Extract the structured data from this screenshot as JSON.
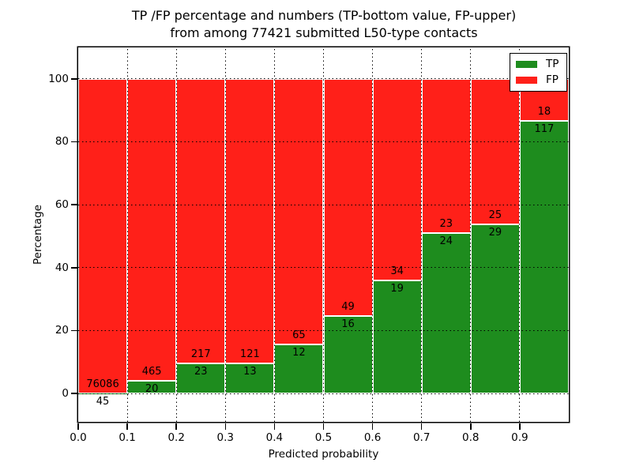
{
  "chart_data": {
    "type": "bar",
    "stacked": true,
    "normalized_to": 100,
    "title_line1": "TP /FP percentage and numbers (TP-bottom value, FP-upper)",
    "title_line2": "from among 77421 submitted L50-type contacts",
    "xlabel": "Predicted probability",
    "ylabel": "Percentage",
    "bin_starts": [
      0.0,
      0.1,
      0.2,
      0.3,
      0.4,
      0.5,
      0.6,
      0.7,
      0.8,
      0.9
    ],
    "bin_width": 0.1,
    "series": [
      {
        "name": "TP",
        "color": "#1e8c1e",
        "counts": [
          45,
          20,
          23,
          13,
          12,
          16,
          19,
          24,
          29,
          117
        ]
      },
      {
        "name": "FP",
        "color": "#ff2019",
        "counts": [
          76086,
          465,
          217,
          121,
          65,
          49,
          34,
          23,
          25,
          18
        ]
      }
    ],
    "tp_percent": [
      0.06,
      4.12,
      9.58,
      9.7,
      15.58,
      24.62,
      35.85,
      51.06,
      53.7,
      86.67
    ],
    "total_contacts": 77421,
    "xticks": [
      "0.0",
      "0.1",
      "0.2",
      "0.3",
      "0.4",
      "0.5",
      "0.6",
      "0.7",
      "0.8",
      "0.9"
    ],
    "yticks": [
      "0",
      "20",
      "40",
      "60",
      "80",
      "100"
    ],
    "xlim": [
      0.0,
      1.0
    ],
    "ylim": [
      -9,
      110
    ],
    "grid": true,
    "grid_style": "dotted black drawn above bars",
    "legend": {
      "position": "upper right",
      "entries": [
        {
          "label": "TP",
          "color": "#1e8c1e"
        },
        {
          "label": "FP",
          "color": "#ff2019"
        }
      ]
    }
  }
}
